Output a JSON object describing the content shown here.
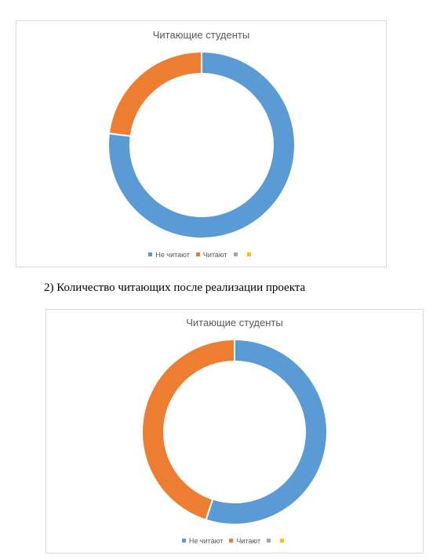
{
  "caption": "2) Количество читающих после реализации проекта",
  "chart_data": [
    {
      "type": "pie",
      "donut": true,
      "title": "Читающие студенты",
      "categories": [
        "Не читают",
        "Читают",
        "",
        ""
      ],
      "values": [
        77,
        23,
        0,
        0
      ],
      "colors": [
        "#5b9bd5",
        "#ed7d31",
        "#a5a5a5",
        "#ffc000"
      ],
      "legend_position": "bottom"
    },
    {
      "type": "pie",
      "donut": true,
      "title": "Читающие студенты",
      "categories": [
        "Не читают",
        "Читают",
        "",
        ""
      ],
      "values": [
        55,
        45,
        0,
        0
      ],
      "colors": [
        "#5b9bd5",
        "#ed7d31",
        "#a5a5a5",
        "#ffc000"
      ],
      "legend_position": "bottom"
    }
  ]
}
